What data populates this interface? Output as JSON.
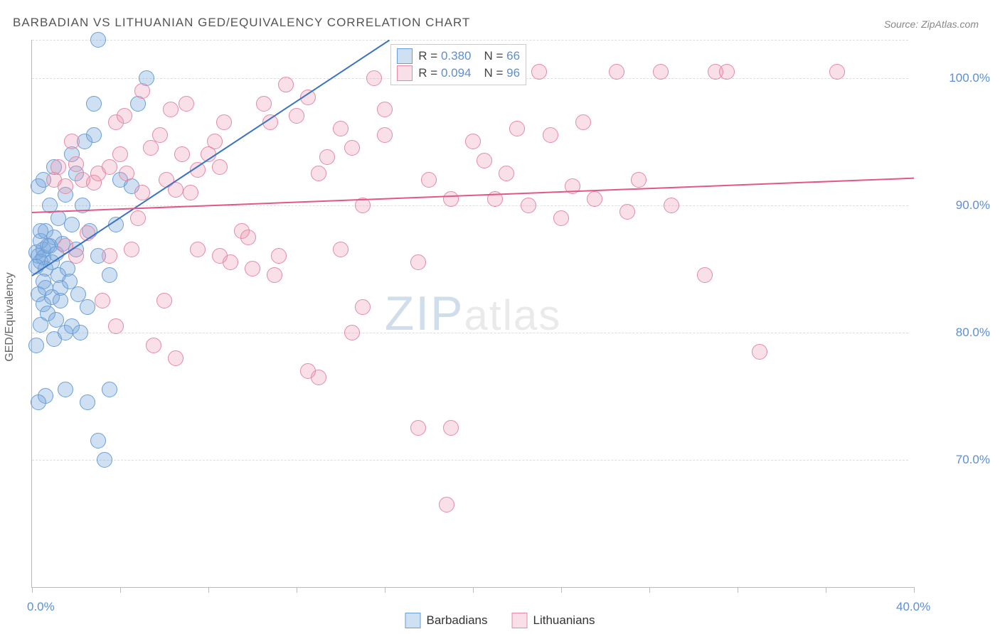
{
  "title": "BARBADIAN VS LITHUANIAN GED/EQUIVALENCY CORRELATION CHART",
  "source": "Source: ZipAtlas.com",
  "y_axis_title": "GED/Equivalency",
  "watermark": {
    "prefix": "ZIP",
    "suffix": "atlas"
  },
  "chart": {
    "type": "scatter",
    "background_color": "#ffffff",
    "grid_color": "#dddddd",
    "axis_color": "#bbbbbb",
    "label_color": "#5b8fd6",
    "xlim": [
      0,
      40
    ],
    "ylim": [
      60,
      103
    ],
    "point_radius": 11,
    "point_stroke_width": 1.5,
    "xticks": [
      0,
      4,
      8,
      12,
      16,
      20,
      24,
      28,
      32,
      36,
      40
    ],
    "xlabels": [
      {
        "v": 0,
        "t": "0.0%"
      },
      {
        "v": 40,
        "t": "40.0%"
      }
    ],
    "ygrid": [
      70,
      80,
      90,
      100,
      103
    ],
    "ylabels": [
      {
        "v": 70,
        "t": "70.0%"
      },
      {
        "v": 80,
        "t": "80.0%"
      },
      {
        "v": 90,
        "t": "90.0%"
      },
      {
        "v": 100,
        "t": "100.0%"
      }
    ],
    "series": [
      {
        "name": "Barbadians",
        "fill": "rgba(120,165,220,0.35)",
        "stroke": "#6a9ed6",
        "trend_color": "#3a72c4",
        "trend": {
          "x1": 0,
          "y1": 84.5,
          "x2": 16.2,
          "y2": 103
        },
        "R": "0.380",
        "N": "66",
        "points": [
          [
            0.2,
            86.3
          ],
          [
            0.3,
            86.0
          ],
          [
            0.4,
            85.6
          ],
          [
            0.5,
            86.5
          ],
          [
            0.6,
            85.0
          ],
          [
            0.5,
            85.9
          ],
          [
            0.4,
            87.2
          ],
          [
            0.8,
            86.8
          ],
          [
            0.6,
            88.0
          ],
          [
            1.0,
            87.5
          ],
          [
            0.3,
            83.0
          ],
          [
            0.5,
            82.2
          ],
          [
            0.7,
            81.5
          ],
          [
            0.9,
            82.8
          ],
          [
            1.1,
            81.0
          ],
          [
            0.4,
            80.6
          ],
          [
            1.3,
            83.5
          ],
          [
            0.2,
            79.0
          ],
          [
            1.0,
            79.5
          ],
          [
            0.6,
            75.0
          ],
          [
            1.5,
            80.0
          ],
          [
            2.2,
            80.0
          ],
          [
            0.5,
            84.0
          ],
          [
            1.2,
            84.5
          ],
          [
            0.8,
            90.0
          ],
          [
            1.5,
            90.8
          ],
          [
            0.3,
            91.5
          ],
          [
            0.5,
            92.0
          ],
          [
            1.0,
            93.0
          ],
          [
            1.8,
            94.0
          ],
          [
            2.4,
            95.0
          ],
          [
            2.0,
            92.5
          ],
          [
            1.2,
            89.0
          ],
          [
            2.6,
            88.0
          ],
          [
            3.0,
            86.0
          ],
          [
            3.0,
            103.0
          ],
          [
            2.5,
            82.0
          ],
          [
            3.5,
            84.5
          ],
          [
            3.8,
            88.5
          ],
          [
            4.0,
            92.0
          ],
          [
            4.5,
            91.5
          ],
          [
            2.8,
            98.0
          ],
          [
            4.8,
            98.0
          ],
          [
            5.2,
            100.0
          ],
          [
            3.0,
            71.5
          ],
          [
            0.7,
            86.8
          ],
          [
            0.9,
            85.5
          ],
          [
            1.1,
            86.2
          ],
          [
            1.4,
            87.0
          ],
          [
            1.6,
            85.0
          ],
          [
            1.3,
            82.5
          ],
          [
            1.7,
            84.0
          ],
          [
            2.0,
            86.5
          ],
          [
            2.3,
            90.0
          ],
          [
            0.4,
            88.0
          ],
          [
            0.2,
            85.2
          ],
          [
            0.6,
            83.5
          ],
          [
            1.8,
            88.5
          ],
          [
            2.1,
            83.0
          ],
          [
            2.5,
            74.5
          ],
          [
            3.5,
            75.5
          ],
          [
            0.3,
            74.5
          ],
          [
            1.5,
            75.5
          ],
          [
            1.8,
            80.5
          ],
          [
            3.3,
            70.0
          ],
          [
            2.8,
            95.5
          ]
        ]
      },
      {
        "name": "Lithuanians",
        "fill": "rgba(235,150,175,0.30)",
        "stroke": "#e48aa5",
        "trend_color": "#e25788",
        "trend": {
          "x1": 0,
          "y1": 89.5,
          "x2": 40,
          "y2": 92.2
        },
        "R": "0.094",
        "N": "96",
        "points": [
          [
            1.0,
            92.0
          ],
          [
            1.5,
            91.5
          ],
          [
            1.2,
            93.0
          ],
          [
            2.0,
            93.2
          ],
          [
            2.3,
            92.0
          ],
          [
            2.8,
            91.8
          ],
          [
            3.0,
            92.5
          ],
          [
            3.5,
            93.0
          ],
          [
            4.0,
            94.0
          ],
          [
            4.3,
            92.5
          ],
          [
            5.0,
            91.0
          ],
          [
            5.4,
            94.5
          ],
          [
            5.8,
            95.5
          ],
          [
            6.1,
            92.0
          ],
          [
            6.5,
            91.2
          ],
          [
            6.3,
            97.5
          ],
          [
            7.0,
            98.0
          ],
          [
            7.2,
            91.0
          ],
          [
            7.5,
            92.8
          ],
          [
            8.0,
            94.0
          ],
          [
            8.3,
            95.0
          ],
          [
            8.7,
            96.5
          ],
          [
            8.5,
            93.0
          ],
          [
            9.0,
            85.5
          ],
          [
            9.5,
            88.0
          ],
          [
            9.8,
            87.5
          ],
          [
            10.0,
            85.0
          ],
          [
            10.5,
            98.0
          ],
          [
            10.8,
            96.5
          ],
          [
            11.5,
            99.5
          ],
          [
            11.0,
            84.5
          ],
          [
            11.2,
            86.0
          ],
          [
            12.0,
            97.0
          ],
          [
            12.5,
            98.5
          ],
          [
            13.0,
            92.5
          ],
          [
            13.4,
            93.8
          ],
          [
            13.0,
            76.5
          ],
          [
            12.5,
            77.0
          ],
          [
            14.0,
            96.0
          ],
          [
            14.5,
            94.5
          ],
          [
            14.0,
            86.5
          ],
          [
            15.0,
            90.0
          ],
          [
            15.5,
            100.0
          ],
          [
            16.0,
            97.5
          ],
          [
            14.5,
            80.0
          ],
          [
            15.0,
            82.0
          ],
          [
            16.0,
            95.5
          ],
          [
            17.0,
            100.5
          ],
          [
            17.5,
            85.5
          ],
          [
            17.5,
            72.5
          ],
          [
            18.0,
            92.0
          ],
          [
            18.8,
            66.5
          ],
          [
            19.0,
            90.5
          ],
          [
            19.0,
            72.5
          ],
          [
            19.5,
            101.0
          ],
          [
            18.5,
            101.5
          ],
          [
            20.0,
            95.0
          ],
          [
            21.0,
            90.5
          ],
          [
            21.5,
            92.5
          ],
          [
            22.0,
            96.0
          ],
          [
            22.5,
            90.0
          ],
          [
            23.5,
            95.5
          ],
          [
            23.0,
            100.5
          ],
          [
            24.0,
            89.0
          ],
          [
            24.5,
            91.5
          ],
          [
            25.0,
            96.5
          ],
          [
            25.5,
            90.5
          ],
          [
            26.5,
            100.5
          ],
          [
            27.0,
            89.5
          ],
          [
            27.5,
            92.0
          ],
          [
            28.5,
            100.5
          ],
          [
            29.0,
            90.0
          ],
          [
            30.5,
            84.5
          ],
          [
            31.0,
            100.5
          ],
          [
            31.5,
            100.5
          ],
          [
            33.0,
            78.5
          ],
          [
            36.5,
            100.5
          ],
          [
            4.8,
            89.0
          ],
          [
            4.5,
            86.5
          ],
          [
            5.5,
            79.0
          ],
          [
            3.2,
            82.5
          ],
          [
            3.8,
            80.5
          ],
          [
            6.0,
            82.5
          ],
          [
            6.5,
            78.0
          ],
          [
            3.5,
            86.0
          ],
          [
            2.5,
            87.8
          ],
          [
            2.0,
            86.0
          ],
          [
            1.5,
            86.8
          ],
          [
            1.8,
            95.0
          ],
          [
            3.8,
            96.5
          ],
          [
            6.8,
            94.0
          ],
          [
            7.5,
            86.5
          ],
          [
            20.5,
            93.5
          ],
          [
            4.2,
            97.0
          ],
          [
            5.0,
            99.0
          ],
          [
            8.5,
            86.0
          ]
        ]
      }
    ]
  },
  "legend_top_labels": {
    "R": "R =",
    "N": "N ="
  }
}
